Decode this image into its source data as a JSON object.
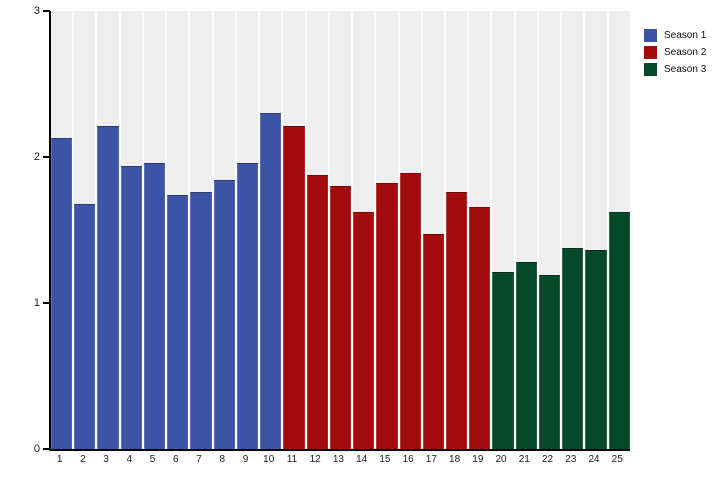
{
  "chart_data": {
    "type": "bar",
    "title": "",
    "xlabel": "",
    "ylabel": "",
    "categories": [
      "1",
      "2",
      "3",
      "4",
      "5",
      "6",
      "7",
      "8",
      "9",
      "10",
      "11",
      "12",
      "13",
      "14",
      "15",
      "16",
      "17",
      "18",
      "19",
      "20",
      "21",
      "22",
      "23",
      "24",
      "25"
    ],
    "series": [
      {
        "name": "Season 1",
        "color": "#3c54a6",
        "category_range": [
          "1",
          "10"
        ],
        "values": [
          2.13,
          1.68,
          2.21,
          1.94,
          1.96,
          1.74,
          1.76,
          1.84,
          1.96,
          2.3
        ]
      },
      {
        "name": "Season 2",
        "color": "#a20c0c",
        "category_range": [
          "11",
          "19"
        ],
        "values": [
          2.21,
          1.88,
          1.8,
          1.62,
          1.82,
          1.89,
          1.47,
          1.76,
          1.66
        ]
      },
      {
        "name": "Season 3",
        "color": "#06492a",
        "category_range": [
          "20",
          "25"
        ],
        "values": [
          1.21,
          1.28,
          1.19,
          1.38,
          1.36,
          1.62
        ]
      }
    ],
    "ylim": [
      0,
      3
    ],
    "yticks": [
      "0",
      "1",
      "2",
      "3"
    ],
    "legend_position": "top-right",
    "grid": false,
    "layout_colors": {
      "plot_band": "#efefef",
      "plot_background": "#fbfbfb",
      "axis": "#000000",
      "outer_background": "#ffffff"
    }
  }
}
